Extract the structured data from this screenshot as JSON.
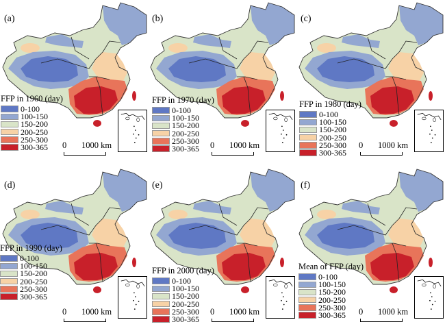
{
  "colors": {
    "c0_100": "#5f78c4",
    "c100_150": "#93a7d1",
    "c150_200": "#d9e4c8",
    "c200_250": "#f7d2a6",
    "c250_300": "#e8745a",
    "c300_365": "#c8202a"
  },
  "legend_items": [
    "0-100",
    "100-150",
    "150-200",
    "200-250",
    "250-300",
    "300-365"
  ],
  "scale": {
    "zero": "0",
    "distance": "1000 km"
  },
  "panels": [
    {
      "label": "(a)",
      "legend_title": "FFP in 1960 (day)"
    },
    {
      "label": "(b)",
      "legend_title": "FFP in 1970 (day)"
    },
    {
      "label": "(c)",
      "legend_title": "FFP in 1980 (day)"
    },
    {
      "label": "(d)",
      "legend_title": "FFP in 1990 (day)"
    },
    {
      "label": "(e)",
      "legend_title": "FFP in 2000 (day)"
    },
    {
      "label": "(f)",
      "legend_title": "Mean of FFP (day)"
    }
  ]
}
